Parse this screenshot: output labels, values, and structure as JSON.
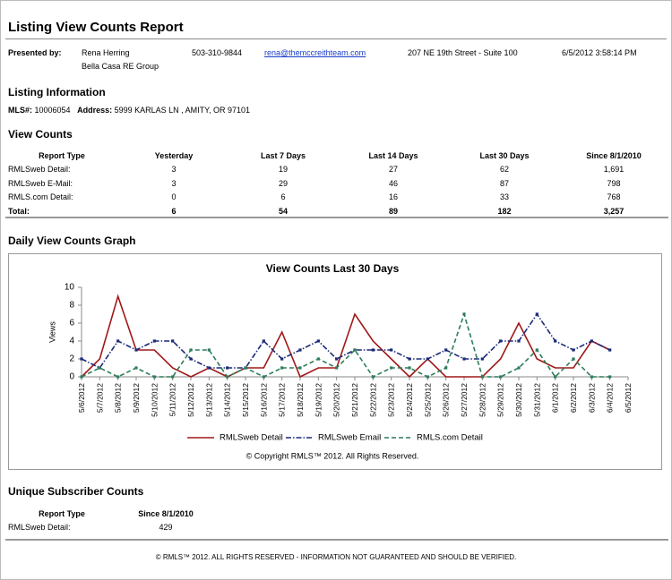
{
  "header": {
    "title": "Listing View Counts Report"
  },
  "presenter": {
    "label": "Presented by:",
    "name": "Rena Herring",
    "company": "Bella Casa RE Group",
    "phone": "503-310-9844",
    "email": "rena@themccreithteam.com",
    "address": "207 NE 19th Street - Suite 100",
    "datetime": "6/5/2012 3:58:14 PM"
  },
  "listing": {
    "heading": "Listing Information",
    "mls_label": "MLS#:",
    "mls": "10006054",
    "address_label": "Address:",
    "address": "5999 KARLAS LN , AMITY, OR 97101"
  },
  "view_counts": {
    "heading": "View Counts",
    "columns": [
      "Report Type",
      "Yesterday",
      "Last 7 Days",
      "Last 14 Days",
      "Last 30 Days",
      "Since 8/1/2010"
    ],
    "rows": [
      [
        "RMLSweb Detail:",
        "3",
        "19",
        "27",
        "62",
        "1,691"
      ],
      [
        "RMLSweb E-Mail:",
        "3",
        "29",
        "46",
        "87",
        "798"
      ],
      [
        "RMLS.com Detail:",
        "0",
        "6",
        "16",
        "33",
        "768"
      ]
    ],
    "total": [
      "Total:",
      "6",
      "54",
      "89",
      "182",
      "3,257"
    ]
  },
  "graph_heading": "Daily View Counts Graph",
  "chart_data": {
    "type": "line",
    "title": "View Counts Last 30 Days",
    "y_label": "Views",
    "annotation": "© Copyright RMLS™ 2012.  All Rights Reserved.",
    "categories": [
      "5/6/2012",
      "5/7/2012",
      "5/8/2012",
      "5/9/2012",
      "5/10/2012",
      "5/11/2012",
      "5/12/2012",
      "5/13/2012",
      "5/14/2012",
      "5/15/2012",
      "5/16/2012",
      "5/17/2012",
      "5/18/2012",
      "5/19/2012",
      "5/20/2012",
      "5/21/2012",
      "5/22/2012",
      "5/23/2012",
      "5/24/2012",
      "5/25/2012",
      "5/26/2012",
      "5/27/2012",
      "5/28/2012",
      "5/29/2012",
      "5/30/2012",
      "5/31/2012",
      "6/1/2012",
      "6/2/2012",
      "6/3/2012",
      "6/4/2012",
      "6/5/2012"
    ],
    "series": [
      {
        "name": "RMLSweb Detail",
        "color": "#a01818",
        "line_style": "solid",
        "values": [
          0,
          2,
          9,
          3,
          3,
          1,
          0,
          1,
          0,
          1,
          1,
          5,
          0,
          1,
          1,
          7,
          4,
          2,
          0,
          2,
          0,
          0,
          0,
          2,
          6,
          2,
          1,
          1,
          4,
          3,
          null
        ]
      },
      {
        "name": "RMLSweb Email",
        "color": "#1a2a78",
        "line_style": "dashdot",
        "values": [
          2,
          1,
          4,
          3,
          4,
          4,
          2,
          1,
          1,
          1,
          4,
          2,
          3,
          4,
          2,
          3,
          3,
          3,
          2,
          2,
          3,
          2,
          2,
          4,
          4,
          7,
          4,
          3,
          4,
          3,
          null
        ]
      },
      {
        "name": "RMLS.com Detail",
        "color": "#2e7d5a",
        "line_style": "dashed",
        "values": [
          0,
          1,
          0,
          1,
          0,
          0,
          3,
          3,
          0,
          1,
          0,
          1,
          1,
          2,
          1,
          3,
          0,
          1,
          1,
          0,
          1,
          7,
          0,
          0,
          1,
          3,
          0,
          2,
          0,
          0,
          null
        ]
      }
    ],
    "ylim": [
      0,
      10
    ],
    "yticks": [
      0,
      2,
      4,
      6,
      8,
      10
    ],
    "grid": false,
    "legend": "bottom"
  },
  "unique": {
    "heading": "Unique Subscriber Counts",
    "columns": [
      "Report Type",
      "Since 8/1/2010"
    ],
    "rows": [
      [
        "RMLSweb Detail:",
        "429"
      ]
    ]
  },
  "footer": "© RMLS™ 2012. ALL RIGHTS RESERVED - INFORMATION NOT GUARANTEED AND SHOULD BE VERIFIED."
}
